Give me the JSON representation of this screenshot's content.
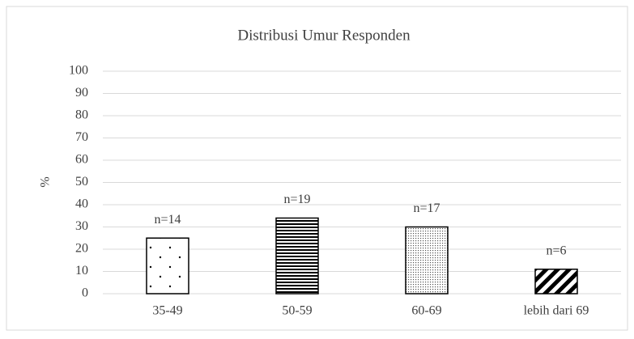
{
  "chart_data": {
    "type": "bar",
    "title": "Distribusi Umur Responden",
    "ylabel": "%",
    "categories": [
      "35-49",
      "50-59",
      "60-69",
      "lebih dari 69"
    ],
    "values": [
      25,
      34,
      30,
      11
    ],
    "bar_labels": [
      "n=14",
      "n=19",
      "n=17",
      "n=6"
    ],
    "patterns": [
      "dots",
      "hlines",
      "fine-dots",
      "diagonal"
    ],
    "color": "#000000",
    "ylim": [
      0,
      100
    ],
    "yticks": [
      0,
      10,
      20,
      30,
      40,
      50,
      60,
      70,
      80,
      90,
      100
    ],
    "grid": true
  }
}
